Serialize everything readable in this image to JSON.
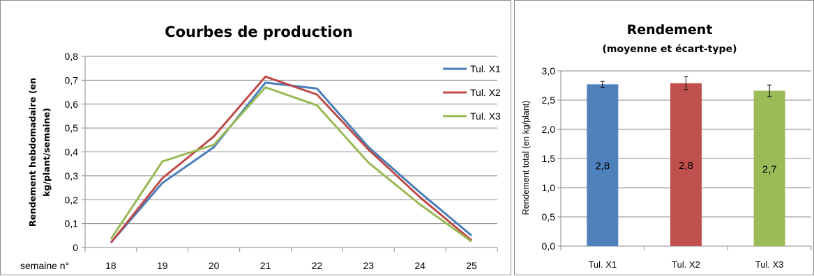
{
  "chart_data": [
    {
      "type": "line",
      "title": "Courbes de production",
      "ylabel_line1": "Rendement hebdomadaire (en",
      "ylabel_line2": "kg/plant/semaine)",
      "xlabel_prefix": "semaine n°",
      "x": [
        "18",
        "19",
        "20",
        "21",
        "22",
        "23",
        "24",
        "25"
      ],
      "y_ticks": [
        "0",
        "0,1",
        "0,2",
        "0,3",
        "0,4",
        "0,5",
        "0,6",
        "0,7",
        "0,8"
      ],
      "ylim": [
        0,
        0.8
      ],
      "grid": true,
      "legend_position": "right",
      "series": [
        {
          "name": "Tul. X1",
          "color": "#4a7ebb",
          "values": [
            0.02,
            0.27,
            0.42,
            0.69,
            0.665,
            0.42,
            0.23,
            0.05
          ]
        },
        {
          "name": "Tul. X2",
          "color": "#be4b48",
          "values": [
            0.02,
            0.29,
            0.465,
            0.715,
            0.64,
            0.41,
            0.21,
            0.03
          ]
        },
        {
          "name": "Tul. X3",
          "color": "#98b954",
          "values": [
            0.035,
            0.36,
            0.43,
            0.67,
            0.595,
            0.355,
            0.18,
            0.025
          ]
        }
      ]
    },
    {
      "type": "bar",
      "title": "Rendement",
      "subtitle": "(moyenne et écart-type)",
      "ylabel": "Rendement total (en kg/plant)",
      "categories": [
        "Tul. X1",
        "Tul. X2",
        "Tul. X3"
      ],
      "values": [
        2.77,
        2.79,
        2.66
      ],
      "errors": [
        0.05,
        0.11,
        0.1
      ],
      "data_labels": [
        "2,8",
        "2,8",
        "2,7"
      ],
      "colors": [
        "#4f81bd",
        "#c0504d",
        "#9bbb59"
      ],
      "y_ticks": [
        "0,0",
        "0,5",
        "1,0",
        "1,5",
        "2,0",
        "2,5",
        "3,0"
      ],
      "ylim": [
        0,
        3.0
      ],
      "grid": true
    }
  ]
}
